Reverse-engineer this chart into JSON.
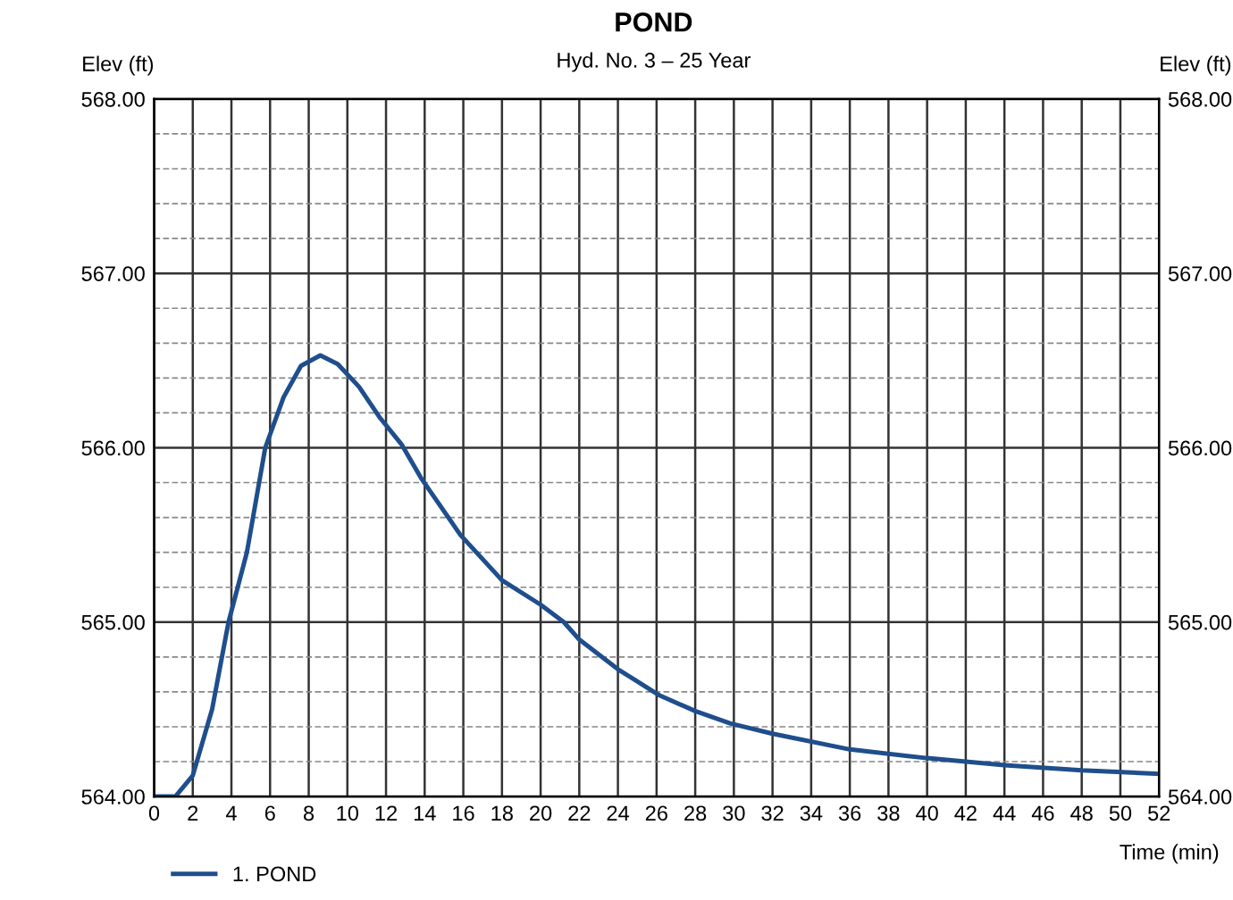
{
  "chart_data": {
    "type": "line",
    "title": "POND",
    "subtitle": "Hyd. No. 3 – 25 Year",
    "xlabel": "Time (min)",
    "ylabel": "Elev (ft)",
    "y2label": "Elev (ft)",
    "series": [
      {
        "name": "1. POND",
        "color": "#1f4e8c",
        "x": [
          0,
          1.1,
          2,
          3,
          3.85,
          4.8,
          5.75,
          6.7,
          7.6,
          8.6,
          9.5,
          10.6,
          11.7,
          12.8,
          13.85,
          15.85,
          18,
          20,
          21.2,
          22,
          24,
          26.15,
          28,
          29.8,
          32,
          36,
          40,
          44,
          48,
          52
        ],
        "values": [
          564.0,
          564.0,
          564.12,
          564.5,
          565.0,
          565.4,
          566.0,
          566.29,
          566.47,
          566.53,
          566.48,
          566.35,
          566.17,
          566.02,
          565.82,
          565.5,
          565.24,
          565.1,
          565.0,
          564.9,
          564.73,
          564.58,
          564.49,
          564.42,
          564.36,
          564.27,
          564.22,
          564.18,
          564.15,
          564.13
        ]
      }
    ],
    "xlim": [
      0,
      52
    ],
    "xticks": [
      0,
      2,
      4,
      6,
      8,
      10,
      12,
      14,
      16,
      18,
      20,
      22,
      24,
      26,
      28,
      30,
      32,
      34,
      36,
      38,
      40,
      42,
      44,
      46,
      48,
      50,
      52
    ],
    "ylim": [
      564,
      568
    ],
    "yticks": [
      {
        "value": 564,
        "label": "564.00"
      },
      {
        "value": 564.2,
        "label": null
      },
      {
        "value": 564.4,
        "label": null
      },
      {
        "value": 564.6,
        "label": null
      },
      {
        "value": 564.8,
        "label": null
      },
      {
        "value": 565,
        "label": "565.00"
      },
      {
        "value": 565.2,
        "label": null
      },
      {
        "value": 565.4,
        "label": null
      },
      {
        "value": 565.6,
        "label": null
      },
      {
        "value": 565.8,
        "label": null
      },
      {
        "value": 566,
        "label": "566.00"
      },
      {
        "value": 566.2,
        "label": null
      },
      {
        "value": 566.4,
        "label": null
      },
      {
        "value": 566.6,
        "label": null
      },
      {
        "value": 566.8,
        "label": null
      },
      {
        "value": 567,
        "label": "567.00"
      },
      {
        "value": 567.2,
        "label": null
      },
      {
        "value": 567.4,
        "label": null
      },
      {
        "value": 567.6,
        "label": null
      },
      {
        "value": 567.8,
        "label": null
      },
      {
        "value": 568,
        "label": "568.00"
      }
    ],
    "y2lim": [
      564,
      568
    ],
    "y2ticks": [
      {
        "value": 564,
        "label": "564.00"
      },
      {
        "value": 565,
        "label": "565.00"
      },
      {
        "value": 566,
        "label": "566.00"
      },
      {
        "value": 567,
        "label": "567.00"
      },
      {
        "value": 568,
        "label": "568.00"
      }
    ],
    "grid": true,
    "legend": "bottom left",
    "marker": "none",
    "line_style": "solid"
  }
}
